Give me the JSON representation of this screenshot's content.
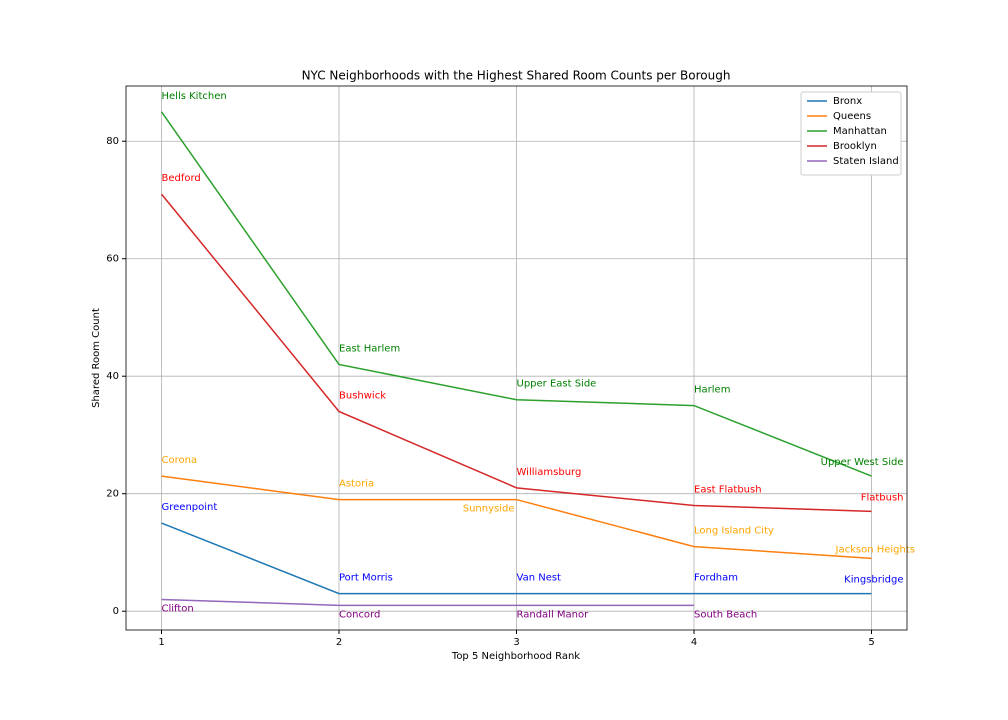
{
  "chart_data": {
    "type": "line",
    "title": "NYC Neighborhoods with the Highest Shared Room Counts per Borough",
    "xlabel": "Top 5 Neighborhood Rank",
    "ylabel": "Shared Room Count",
    "x": [
      1,
      2,
      3,
      4,
      5
    ],
    "xlim": [
      0.8,
      5.2
    ],
    "xticks": [
      1,
      2,
      3,
      4,
      5
    ],
    "ylim": [
      -3.2,
      89.4
    ],
    "yticks": [
      0,
      20,
      40,
      60,
      80
    ],
    "grid": true,
    "legend": "upper right",
    "series": [
      {
        "name": "Bronx",
        "color": "#1f77b4",
        "label_color": "blue",
        "values": [
          15,
          3,
          3,
          3,
          3
        ],
        "point_labels": [
          "Greenpoint",
          "Port Morris",
          "Van Nest",
          "Fordham",
          "Kingsbridge"
        ]
      },
      {
        "name": "Queens",
        "color": "#ff7f0e",
        "label_color": "orange",
        "values": [
          23,
          19,
          19,
          11,
          9
        ],
        "point_labels": [
          "Corona",
          "Astoria",
          "Sunnyside",
          "Long Island City",
          "Jackson Heights"
        ]
      },
      {
        "name": "Manhattan",
        "color": "#2ca02c",
        "label_color": "green",
        "values": [
          85,
          42,
          36,
          35,
          23
        ],
        "point_labels": [
          "Hells Kitchen",
          "East Harlem",
          "Upper East Side",
          "Harlem",
          "Upper West Side"
        ]
      },
      {
        "name": "Brooklyn",
        "color": "#d62728",
        "label_color": "red",
        "values": [
          71,
          34,
          21,
          18,
          17
        ],
        "point_labels": [
          "Bedford",
          "Bushwick",
          "Williamsburg",
          "East Flatbush",
          "Flatbush"
        ]
      },
      {
        "name": "Staten Island",
        "color": "#9467bd",
        "label_color": "purple",
        "values": [
          2,
          1,
          1,
          1,
          null
        ],
        "point_labels": [
          "Clifton",
          "Concord",
          "Randall Manor",
          "South Beach",
          null
        ]
      }
    ]
  }
}
